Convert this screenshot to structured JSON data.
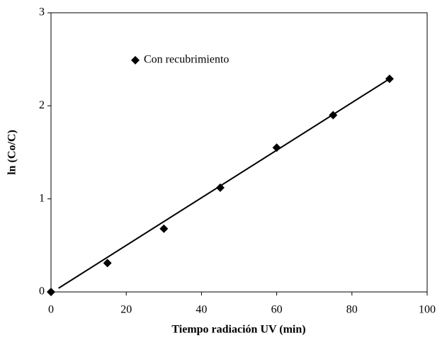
{
  "chart_data": {
    "type": "scatter",
    "x_label": "Tiempo radiación UV (min)",
    "y_label": "ln (Co/C)",
    "series": [
      {
        "name": "Con recubrimiento",
        "color": "#000000",
        "x": [
          0,
          15,
          30,
          45,
          60,
          75,
          90
        ],
        "values": [
          0,
          0.31,
          0.68,
          1.12,
          1.55,
          1.9,
          2.29
        ]
      }
    ],
    "trend_line": {
      "x": [
        2,
        90
      ],
      "y": [
        0.04,
        2.29
      ],
      "color": "#000000"
    },
    "xlim": [
      0,
      100
    ],
    "xticks": [
      0,
      20,
      40,
      60,
      80,
      100
    ],
    "ylim": [
      0,
      3
    ],
    "yticks": [
      0,
      1,
      2,
      3
    ],
    "legend": "upper left",
    "grid": false
  }
}
